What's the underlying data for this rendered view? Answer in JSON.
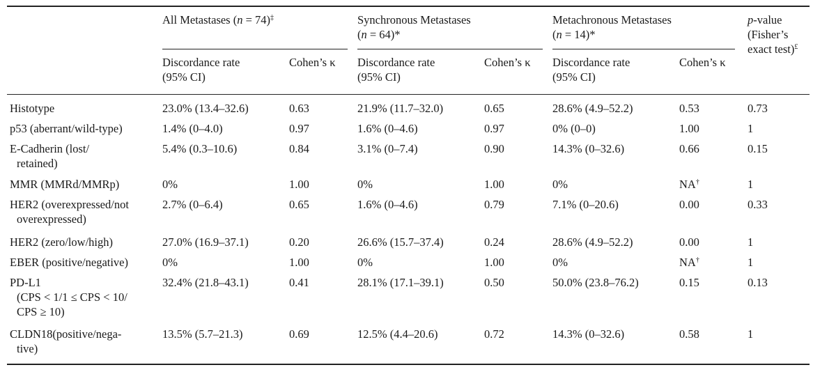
{
  "header": {
    "groups": [
      {
        "line1_pre": "All Metastases (",
        "n_label": "n",
        "line1_post": " = 74)",
        "sup": "‡",
        "line2_open": "",
        "line2_n": "",
        "line2_post": ""
      },
      {
        "line1_pre": "Synchronous Metastases",
        "n_label": "",
        "line1_post": "",
        "sup": "",
        "line2_open": "(",
        "line2_n": "n",
        "line2_post": " = 64)*"
      },
      {
        "line1_pre": "Metachronous Metastases",
        "n_label": "",
        "line1_post": "",
        "sup": "",
        "line2_open": "(",
        "line2_n": "n",
        "line2_post": " = 14)*"
      }
    ],
    "pvalue": {
      "p": "p",
      "line1_rest": "-value",
      "line2": "(Fisher’s",
      "line3": "exact test)",
      "sup": "£"
    },
    "disc_line1": "Discordance rate",
    "disc_line2": "(95% CI)",
    "kappa": "Cohen’s κ"
  },
  "rows": [
    {
      "label": [
        "Histotype"
      ],
      "all": "23.0% (13.4–32.6)",
      "all_k": "0.63",
      "syn": "21.9% (11.7–32.0)",
      "syn_k": "0.65",
      "met": "28.6% (4.9–52.2)",
      "met_k": "0.53",
      "met_k_sup": "",
      "p": "0.73"
    },
    {
      "label": [
        "p53 (aberrant/wild-type)"
      ],
      "all": "1.4% (0–4.0)",
      "all_k": "0.97",
      "syn": "1.6% (0–4.6)",
      "syn_k": "0.97",
      "met": "0% (0–0)",
      "met_k": "1.00",
      "met_k_sup": "",
      "p": "1"
    },
    {
      "label": [
        "E-Cadherin (lost/",
        "retained)"
      ],
      "all": "5.4% (0.3–10.6)",
      "all_k": "0.84",
      "syn": "3.1% (0–7.4)",
      "syn_k": "0.90",
      "met": "14.3% (0–32.6)",
      "met_k": "0.66",
      "met_k_sup": "",
      "p": "0.15"
    },
    {
      "label": [
        "MMR (MMRd/MMRp)"
      ],
      "all": "0%",
      "all_k": "1.00",
      "syn": "0%",
      "syn_k": "1.00",
      "met": "0%",
      "met_k": "NA",
      "met_k_sup": "†",
      "p": "1"
    },
    {
      "label": [
        "HER2 (overexpressed/not",
        "overexpressed)"
      ],
      "all": "2.7% (0–6.4)",
      "all_k": "0.65",
      "syn": "1.6% (0–4.6)",
      "syn_k": "0.79",
      "met": "7.1% (0–20.6)",
      "met_k": "0.00",
      "met_k_sup": "",
      "p": "0.33"
    },
    {
      "label": [
        "HER2 (zero/low/high)"
      ],
      "all": "27.0% (16.9–37.1)",
      "all_k": "0.20",
      "syn": "26.6% (15.7–37.4)",
      "syn_k": "0.24",
      "met": "28.6% (4.9–52.2)",
      "met_k": "0.00",
      "met_k_sup": "",
      "p": "1"
    },
    {
      "label": [
        "EBER (positive/negative)"
      ],
      "all": "0%",
      "all_k": "1.00",
      "syn": "0%",
      "syn_k": "1.00",
      "met": "0%",
      "met_k": "NA",
      "met_k_sup": "†",
      "p": "1"
    },
    {
      "label": [
        "PD-L1",
        "(CPS < 1/1 ≤ CPS < 10/",
        "CPS ≥ 10)"
      ],
      "all": "32.4% (21.8–43.1)",
      "all_k": "0.41",
      "syn": "28.1% (17.1–39.1)",
      "syn_k": "0.50",
      "met": "50.0% (23.8–76.2)",
      "met_k": "0.15",
      "met_k_sup": "",
      "p": "0.13"
    },
    {
      "label": [
        "CLDN18(positive/nega-",
        "tive)"
      ],
      "all": "13.5% (5.7–21.3)",
      "all_k": "0.69",
      "syn": "12.5% (4.4–20.6)",
      "syn_k": "0.72",
      "met": "14.3% (0–32.6)",
      "met_k": "0.58",
      "met_k_sup": "",
      "p": "1"
    }
  ]
}
